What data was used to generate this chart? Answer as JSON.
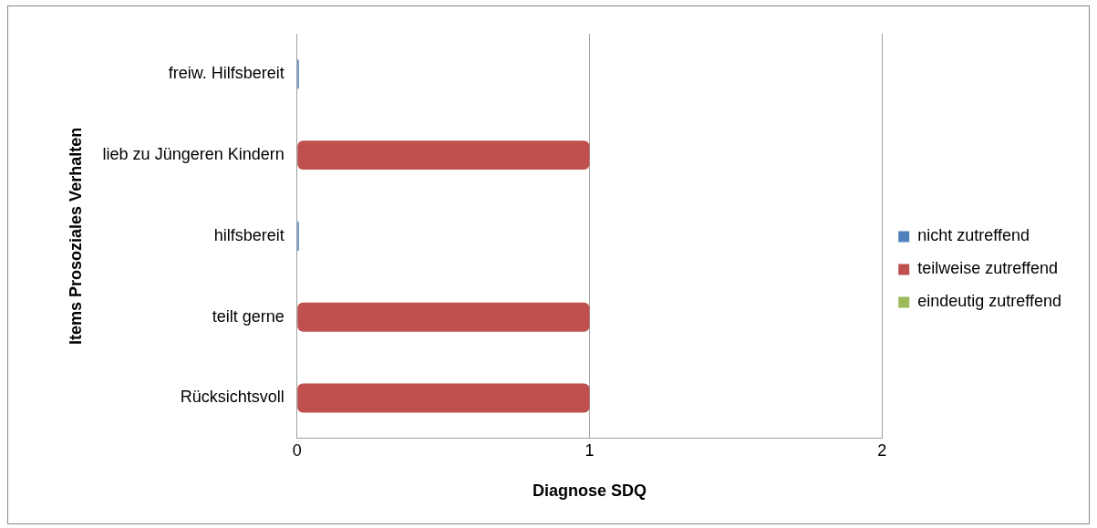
{
  "chart_data": {
    "type": "bar",
    "orientation": "horizontal",
    "stacked": true,
    "xlabel": "Diagnose SDQ",
    "ylabel": "Items Prosoziales Verhalten",
    "categories": [
      "freiw. Hilfsbereit",
      "lieb zu Jüngeren Kindern",
      "hilfsbereit",
      "teilt gerne",
      "Rücksichtsvoll"
    ],
    "series": [
      {
        "name": "nicht zutreffend",
        "color": "#4f81bd",
        "values": [
          0,
          null,
          0,
          null,
          null
        ]
      },
      {
        "name": "teilweise zutreffend",
        "color": "#c0504d",
        "values": [
          null,
          1,
          null,
          1,
          1
        ]
      },
      {
        "name": "eindeutig zutreffend",
        "color": "#9bbb59",
        "values": [
          null,
          null,
          null,
          null,
          null
        ]
      }
    ],
    "xlim": [
      0,
      2
    ],
    "xticks": [
      0,
      1,
      2
    ],
    "grid": "x",
    "legend": "right"
  }
}
